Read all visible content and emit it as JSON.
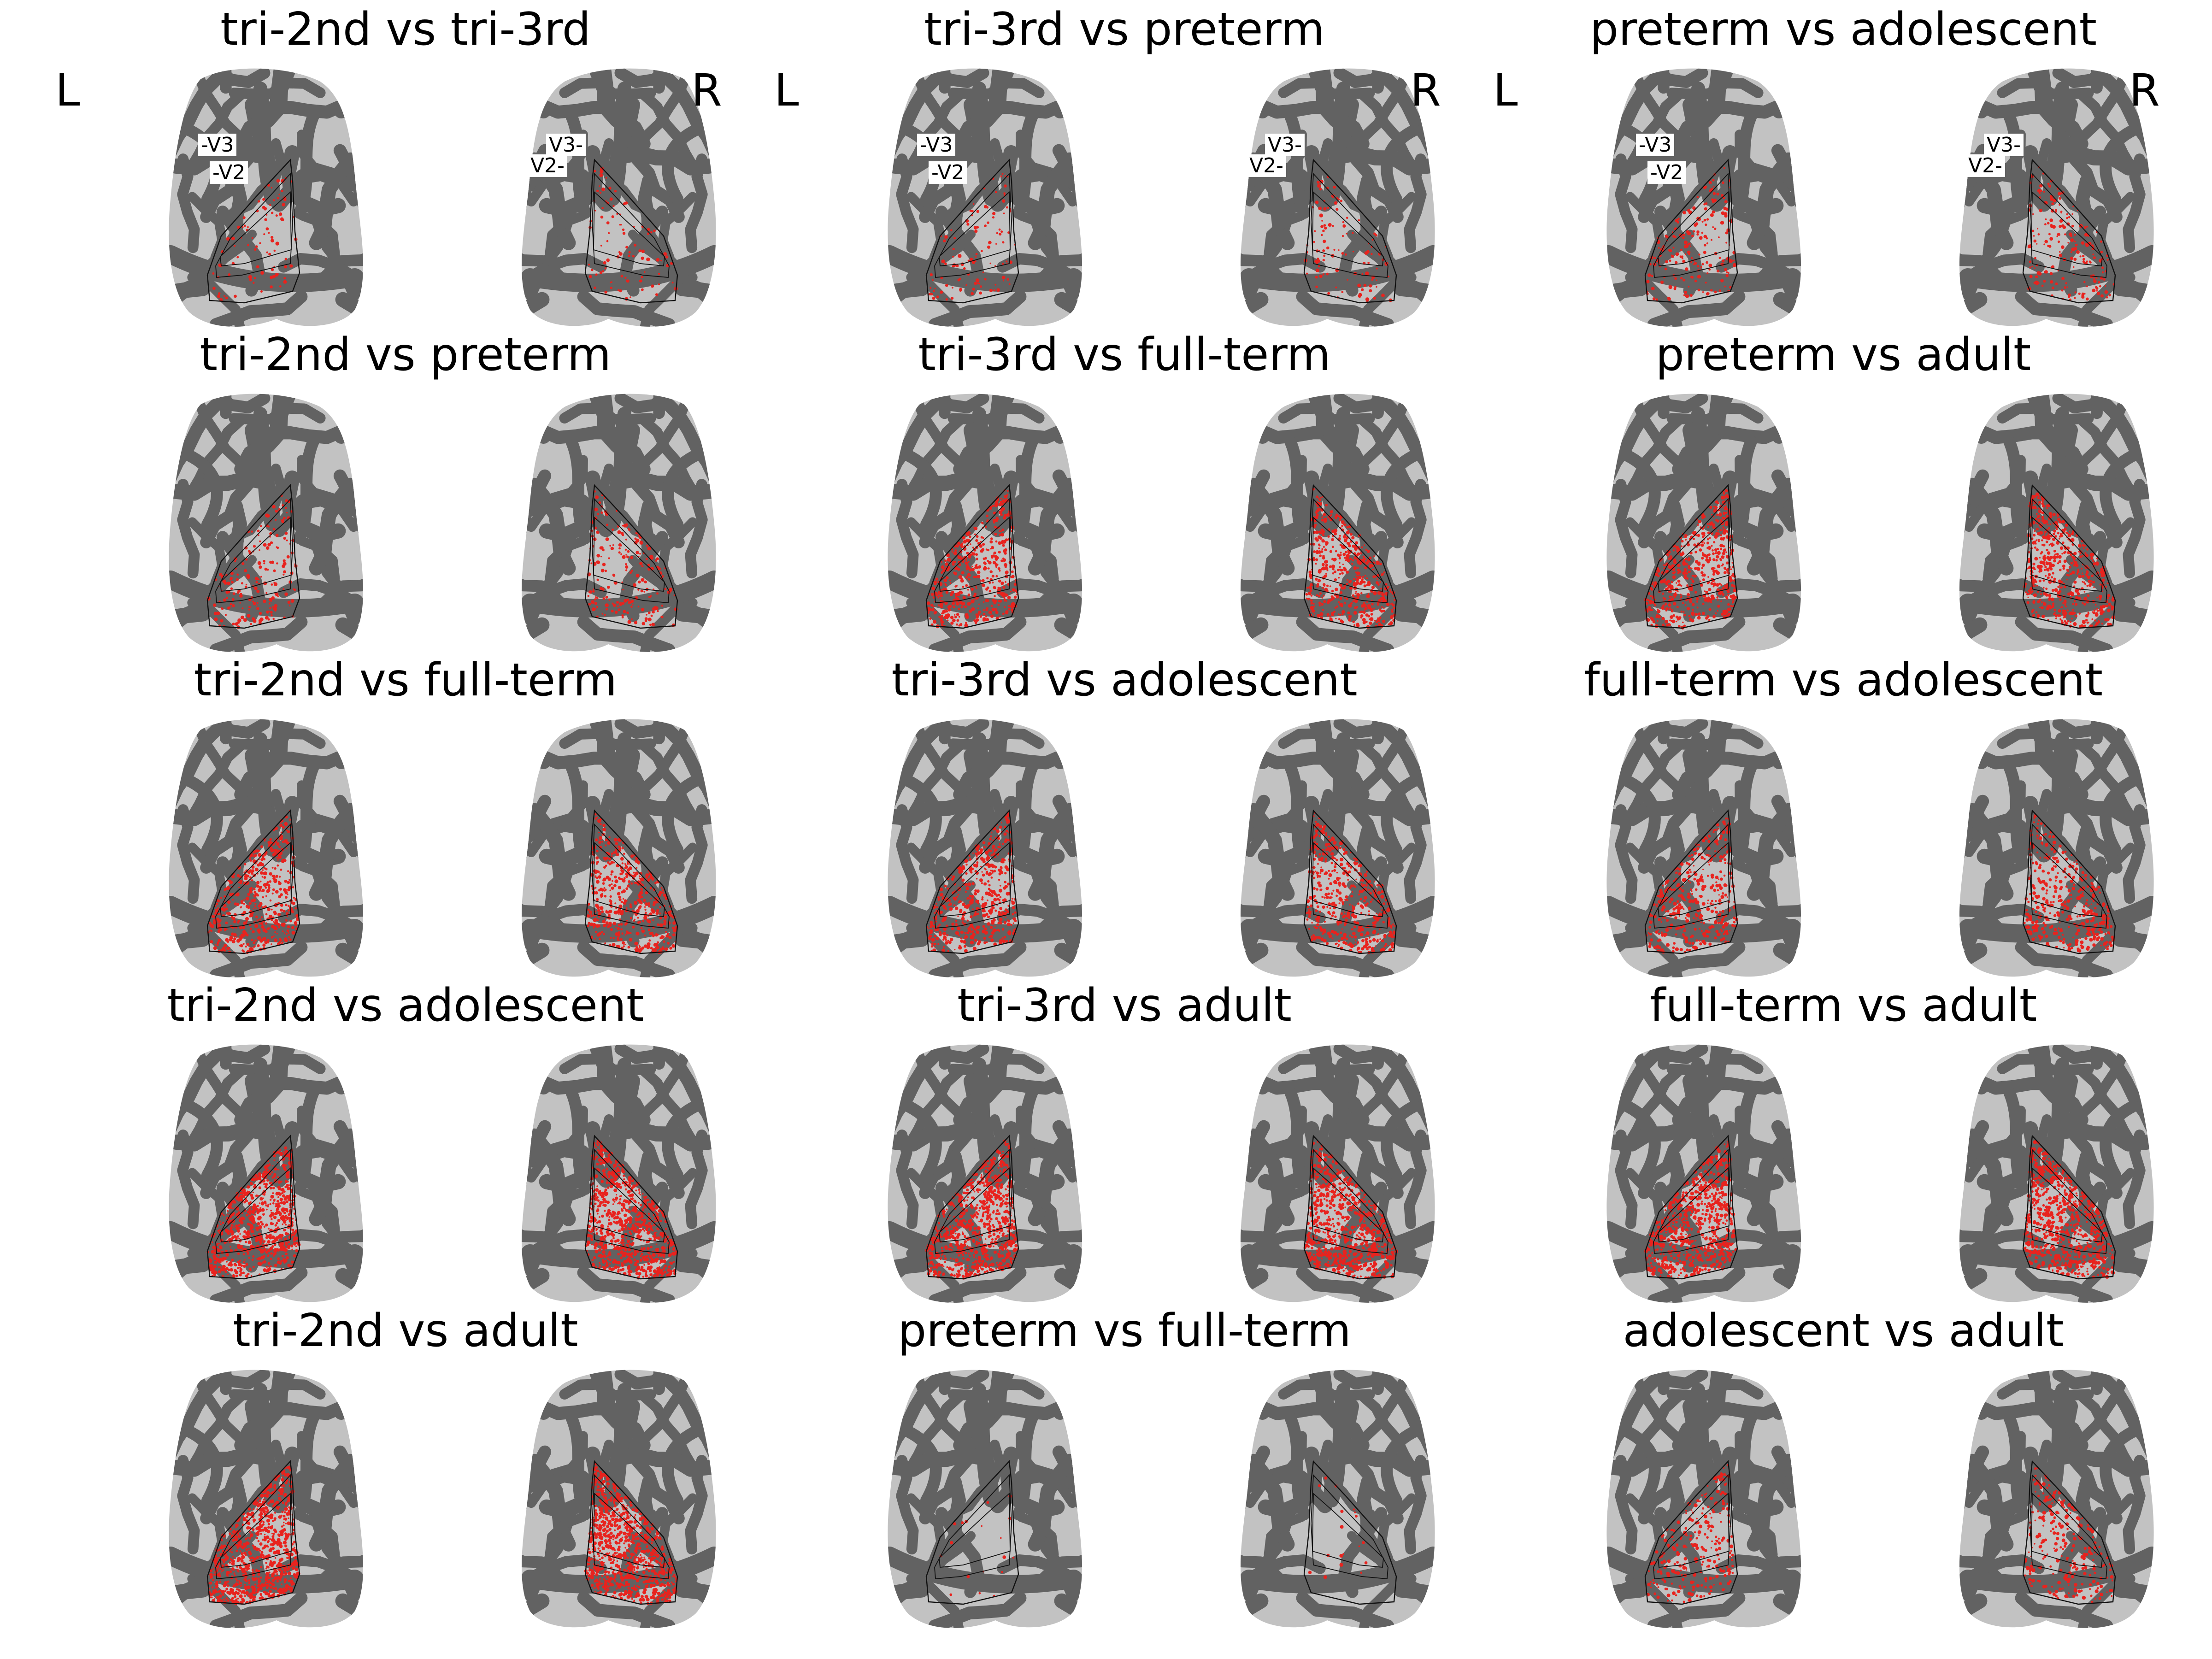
{
  "figure": {
    "hemisphere_labels": {
      "left": "L",
      "right": "R"
    },
    "roi_labels": {
      "v3_left": "-V3",
      "v2_left": "-V2",
      "v3_right": "V3-",
      "v2_right": "V2-"
    },
    "colors": {
      "surface_light": "#c2c2c2",
      "surface_dark": "#626262",
      "significant_vertices": "#e8231e",
      "roi_outline": "#111111"
    },
    "panels": [
      {
        "title": "tri-2nd vs tri-3rd",
        "density": 0.1
      },
      {
        "title": "tri-3rd vs preterm",
        "density": 0.12
      },
      {
        "title": "preterm vs adolescent",
        "density": 0.22
      },
      {
        "title": "tri-2nd vs preterm",
        "density": 0.22
      },
      {
        "title": "tri-3rd vs full-term",
        "density": 0.55
      },
      {
        "title": "preterm vs adult",
        "density": 0.62
      },
      {
        "title": "tri-2nd vs full-term",
        "density": 0.55
      },
      {
        "title": "tri-3rd vs adolescent",
        "density": 0.55
      },
      {
        "title": "full-term vs adolescent",
        "density": 0.45
      },
      {
        "title": "tri-2nd vs adolescent",
        "density": 0.85
      },
      {
        "title": "tri-3rd vs adult",
        "density": 0.85
      },
      {
        "title": "full-term vs adult",
        "density": 0.8
      },
      {
        "title": "tri-2nd vs adult",
        "density": 0.95
      },
      {
        "title": "preterm vs full-term",
        "density": 0.02
      },
      {
        "title": "adolescent vs adult",
        "density": 0.3
      }
    ]
  }
}
